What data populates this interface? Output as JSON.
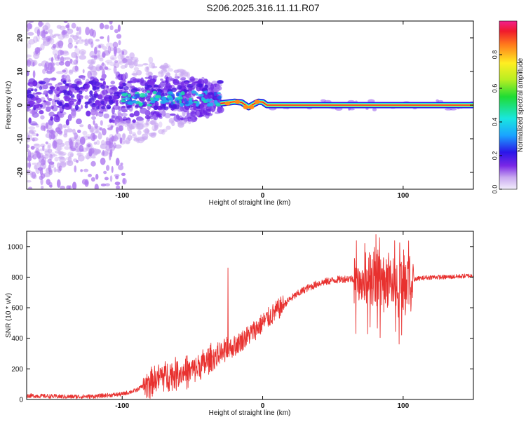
{
  "title": "S206.2025.316.11.11.R07",
  "chart_data": [
    {
      "type": "heatmap",
      "xlabel": "Height of straight line (km)",
      "ylabel": "Frequency (Hz)",
      "xlim": [
        -168,
        150
      ],
      "ylim": [
        -25,
        25
      ],
      "xticks": [
        -100,
        0,
        100
      ],
      "yticks": [
        -20,
        -10,
        0,
        10,
        20
      ],
      "colorbar": {
        "label": "Normalized spectral amplitude",
        "range": [
          0,
          1
        ],
        "ticks": [
          "0.0",
          "0.2",
          "0.4",
          "0.6",
          "0.8"
        ],
        "colormap": "rainbow"
      },
      "ridge": [
        {
          "x": -30,
          "y": 0.5
        },
        {
          "x": -20,
          "y": 1.0
        },
        {
          "x": -15,
          "y": 0.8
        },
        {
          "x": -10,
          "y": -0.6
        },
        {
          "x": -6,
          "y": 0.4
        },
        {
          "x": -3,
          "y": 1.0
        },
        {
          "x": 0,
          "y": 0.9
        },
        {
          "x": 3,
          "y": 0
        },
        {
          "x": 150,
          "y": 0
        }
      ]
    },
    {
      "type": "line",
      "xlabel": "Height of straight line (km)",
      "ylabel": "SNR (10 * v/v)",
      "xlim": [
        -168,
        150
      ],
      "ylim": [
        0,
        1100
      ],
      "xticks": [
        -100,
        0,
        100
      ],
      "yticks": [
        0,
        200,
        400,
        600,
        800,
        1000
      ],
      "color": "#e8312f",
      "series": [
        {
          "x": [
            -168,
            -140,
            -120,
            -100,
            -90,
            -80,
            -70,
            -60,
            -50,
            -40,
            -30,
            -20,
            -10,
            0,
            10,
            20,
            30,
            40,
            50,
            60,
            70,
            80,
            90,
            100,
            110,
            120,
            130,
            140,
            150
          ],
          "y": [
            25,
            18,
            20,
            35,
            60,
            120,
            160,
            170,
            190,
            240,
            300,
            350,
            420,
            500,
            580,
            660,
            720,
            760,
            780,
            790,
            790,
            780,
            760,
            750,
            790,
            800,
            800,
            805,
            810
          ]
        }
      ]
    }
  ]
}
